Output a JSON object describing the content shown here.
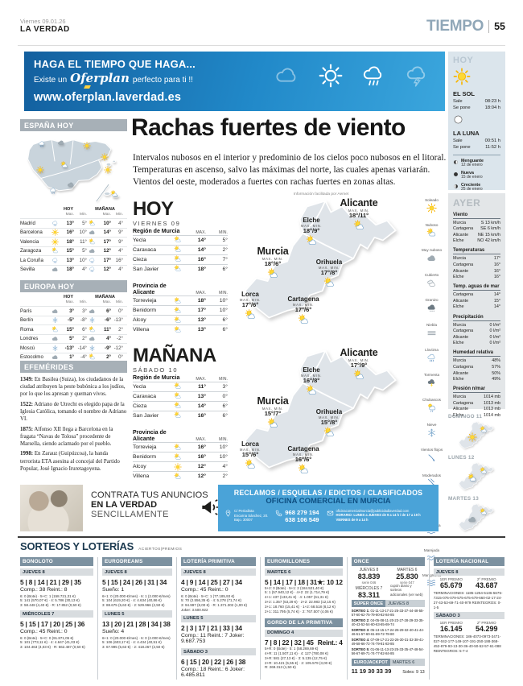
{
  "header": {
    "date": "Viernes 09.01.26",
    "brand": "LA VERDAD",
    "section": "TIEMPO",
    "page": "55"
  },
  "banner": {
    "line1": "HAGA EL TIEMPO QUE HAGA...",
    "pre": "Existe un",
    "brand": "Oferplan",
    "post": "perfecto para ti !!",
    "url": "www.oferplan.laverdad.es"
  },
  "labels": {
    "hoy": "HOY",
    "manana": "MAÑANA",
    "maxlc": "Max.",
    "minlc": "Min.",
    "max": "MAX.",
    "min": "MIN.",
    "maxmin": "MAX.   MIN.",
    "sale": "Sale",
    "pone": "Se pone"
  },
  "espana": {
    "title": "ESPAÑA HOY",
    "rows": [
      {
        "city": "Madrid",
        "i1": "rain",
        "hmax": "13°",
        "hmin": "5°",
        "i2": "sun-cloud",
        "mmax": "10°",
        "mmin": "4°"
      },
      {
        "city": "Barcelona",
        "i1": "sun",
        "hmax": "16°",
        "hmin": "10°",
        "i2": "cloud",
        "mmax": "14°",
        "mmin": "9°"
      },
      {
        "city": "Valencia",
        "i1": "sun",
        "hmax": "18°",
        "hmin": "11°",
        "i2": "sun-cloud",
        "mmax": "17°",
        "mmin": "9°"
      },
      {
        "city": "Zaragoza",
        "i1": "sun-cloud",
        "hmax": "15°",
        "hmin": "5°",
        "i2": "cloud",
        "mmax": "12°",
        "mmin": "4°"
      },
      {
        "city": "La Coruña",
        "i1": "rain",
        "hmax": "13°",
        "hmin": "10°",
        "i2": "rain",
        "mmax": "17°",
        "mmin": "16°"
      },
      {
        "city": "Sevilla",
        "i1": "cloud",
        "hmax": "18°",
        "hmin": "4°",
        "i2": "rain",
        "mmax": "12°",
        "mmin": "4°"
      }
    ]
  },
  "europa": {
    "title": "EUROPA HOY",
    "rows": [
      {
        "city": "París",
        "i1": "cloud",
        "hmax": "3°",
        "hmin": "3°",
        "i2": "cloud",
        "mmax": "6°",
        "mmin": "0°"
      },
      {
        "city": "Berlín",
        "i1": "snow",
        "hmax": "-5°",
        "hmin": "-8°",
        "i2": "snow",
        "mmax": "-6°",
        "mmin": "-13°"
      },
      {
        "city": "Roma",
        "i1": "sun-cloud",
        "hmax": "15°",
        "hmin": "6°",
        "i2": "sun-cloud",
        "mmax": "11°",
        "mmin": "2°"
      },
      {
        "city": "Londres",
        "i1": "cloud",
        "hmax": "5°",
        "hmin": "2°",
        "i2": "cloud",
        "mmax": "4°",
        "mmin": "-2°"
      },
      {
        "city": "Moscú",
        "i1": "snow",
        "hmax": "-13°",
        "hmin": "-14°",
        "i2": "snow",
        "mmax": "-9°",
        "mmin": "-12°"
      },
      {
        "city": "Estocolmo",
        "i1": "cloud",
        "hmax": "1°",
        "hmin": "-4°",
        "i2": "sun-cloud",
        "mmax": "2°",
        "mmin": "0°"
      }
    ]
  },
  "efemerides": {
    "title": "EFEMÉRIDES",
    "entries": [
      {
        "year": "1349:",
        "text": "En Basilea (Suiza), los ciudadanos de la ciudad atribuyen la peste bubónica a los judíos, por lo que los apresan y queman vivos."
      },
      {
        "year": "1522:",
        "text": "Adriano de Utrecht es elegido papa de la Iglesia Católica, tomando el nombre de Adriano VI."
      },
      {
        "year": "1875:",
        "text": "Alfonso XII llega a Barcelona en la fragata “Navas de Tolosa” procedente de Marsella, siendo aclamado por el pueblo."
      },
      {
        "year": "1998:",
        "text": "En Zarauz (Guipúzcoa), la banda terrorista ETA asesina al concejal del Partido Popular, José Ignacio Iruretagoyena."
      }
    ]
  },
  "article": {
    "headline": "Rachas fuertes de viento",
    "body": "Intervalos nubosos en el interior y predominio de los cielos poco nubosos en el litoral. Temperaturas en ascenso, salvo las máximas del norte, las cuales apenas variarán. Vientos del oeste, moderados a fuertes con rachas fuertes en zonas altas.",
    "credit": "Información facilitada por Aemet"
  },
  "hoy": {
    "title": "HOY",
    "subtitle": "VIERNES 09",
    "r1name": "Región de Murcia",
    "r2name": "Provincia de Alicante",
    "region1": [
      {
        "city": "Yecla",
        "icon": "sun-cloud",
        "max": "14°",
        "min": "5°"
      },
      {
        "city": "Caravaca",
        "icon": "sun-cloud",
        "max": "14°",
        "min": "2°"
      },
      {
        "city": "Cieza",
        "icon": "sun-cloud",
        "max": "16°",
        "min": "7°"
      },
      {
        "city": "San Javier",
        "icon": "sun-cloud",
        "max": "18°",
        "min": "6°"
      }
    ],
    "region2": [
      {
        "city": "Torrevieja",
        "icon": "sun-cloud",
        "max": "18°",
        "min": "10°"
      },
      {
        "city": "Benidorm",
        "icon": "sun-cloud",
        "max": "17°",
        "min": "10°"
      },
      {
        "city": "Alcoy",
        "icon": "sun-cloud",
        "max": "13°",
        "min": "6°"
      },
      {
        "city": "Villena",
        "icon": "sun-cloud",
        "max": "13°",
        "min": "6°"
      }
    ],
    "map": [
      {
        "name": "Alicante",
        "temp": "18°/11°"
      },
      {
        "name": "Elche",
        "temp": "18°/9°"
      },
      {
        "name": "Murcia",
        "temp": "18°/6°"
      },
      {
        "name": "Orihuela",
        "temp": "17°/8°"
      },
      {
        "name": "Lorca",
        "temp": "17°/6°"
      },
      {
        "name": "Cartagena",
        "temp": "17°/6°"
      }
    ]
  },
  "manana": {
    "title": "MAÑANA",
    "subtitle": "SÁBADO 10",
    "r1name": "Región de Murcia",
    "r2name": "Provincia de Alicante",
    "region1": [
      {
        "city": "Yecla",
        "icon": "sun-cloud",
        "max": "11°",
        "min": "3°"
      },
      {
        "city": "Caravaca",
        "icon": "sun-cloud",
        "max": "13°",
        "min": "0°"
      },
      {
        "city": "Cieza",
        "icon": "sun-cloud",
        "max": "14°",
        "min": "6°"
      },
      {
        "city": "San Javier",
        "icon": "sun-cloud",
        "max": "16°",
        "min": "6°"
      }
    ],
    "region2": [
      {
        "city": "Torrevieja",
        "icon": "sun-cloud",
        "max": "16°",
        "min": "10°"
      },
      {
        "city": "Benidorm",
        "icon": "sun-cloud",
        "max": "16°",
        "min": "10°"
      },
      {
        "city": "Alcoy",
        "icon": "sun",
        "max": "12°",
        "min": "4°"
      },
      {
        "city": "Villena",
        "icon": "sun-cloud",
        "max": "12°",
        "min": "2°"
      }
    ],
    "map": [
      {
        "name": "Alicante",
        "temp": "17°/9°"
      },
      {
        "name": "Elche",
        "temp": "16°/8°"
      },
      {
        "name": "Murcia",
        "temp": "15°/7°"
      },
      {
        "name": "Orihuela",
        "temp": "15°/8°"
      },
      {
        "name": "Lorca",
        "temp": "15°/6°"
      },
      {
        "name": "Cartagena",
        "temp": "16°/6°"
      }
    ]
  },
  "legend": [
    {
      "label": "Soleado",
      "icon": "sun"
    },
    {
      "label": "Nuboso",
      "icon": "sun-cloud"
    },
    {
      "label": "Muy nuboso",
      "icon": "cloud"
    },
    {
      "label": "Cubierto",
      "icon": "clouds"
    },
    {
      "label": "Granizo",
      "icon": "dark-cloud"
    },
    {
      "label": "Niebla",
      "icon": "fog"
    },
    {
      "label": "Llovizna",
      "icon": "rain"
    },
    {
      "label": "Tormenta",
      "icon": "storm"
    },
    {
      "label": "Chubascos",
      "icon": "sun-rain"
    },
    {
      "label": "Nieve",
      "icon": "snow"
    },
    {
      "label": "Vientos flojos",
      "icon": "wind1"
    },
    {
      "label": "Moderados",
      "icon": "wind2"
    },
    {
      "label": "Fuerte",
      "icon": "wind3"
    },
    {
      "label": "Marejadilla",
      "icon": "wave1"
    },
    {
      "label": "Marejada",
      "icon": "wave2"
    },
    {
      "label": "Mar gruesa",
      "icon": "wave3"
    }
  ],
  "spain_icons": [
    "rain",
    "cloud",
    "sun",
    "sun",
    "sun-cloud",
    "sun",
    "cloud",
    "rain",
    "sun",
    "sun-cloud"
  ],
  "sidebar": {
    "hoy_title": "HOY",
    "sol": {
      "name": "EL SOL",
      "sale": "08:23 h",
      "pone": "18:04 h"
    },
    "luna": {
      "name": "LA LUNA",
      "sale": "00:51 h",
      "pone": "11:52 h"
    },
    "phases": [
      {
        "icon": "moon-last",
        "name": "Menguante",
        "date": "12 de enero"
      },
      {
        "icon": "moon-new",
        "name": "Nueva",
        "date": "15 de enero"
      },
      {
        "icon": "moon-first",
        "name": "Creciente",
        "date": "25 de enero"
      },
      {
        "icon": "moon-full",
        "name": "Llena",
        "date": "2 de febrero"
      }
    ],
    "ayer_title": "AYER",
    "groups": [
      {
        "name": "Viento",
        "rows": [
          [
            "Murcia",
            "S 13 km/h"
          ],
          [
            "Cartagena",
            "SE 6 km/h"
          ],
          [
            "Alicante",
            "NE 15 km/h"
          ],
          [
            "Elche",
            "NO 42 km/h"
          ]
        ]
      },
      {
        "name": "Temperaturas",
        "rows": [
          [
            "Murcia",
            "17°"
          ],
          [
            "Cartagena",
            "16°"
          ],
          [
            "Alicante",
            "16°"
          ],
          [
            "Elche",
            "16°"
          ]
        ]
      },
      {
        "name": "Temp. aguas de mar",
        "rows": [
          [
            "Cartagena",
            "14°"
          ],
          [
            "Alicante",
            "15°"
          ],
          [
            "Elche",
            "14°"
          ]
        ]
      },
      {
        "name": "Precipitación",
        "rows": [
          [
            "Murcia",
            "0 l/m²"
          ],
          [
            "Cartagena",
            "0 l/m²"
          ],
          [
            "Alicante",
            "0 l/m²"
          ],
          [
            "Elche",
            "0 l/m²"
          ]
        ]
      },
      {
        "name": "Humedad relativa",
        "rows": [
          [
            "Murcia",
            "48%"
          ],
          [
            "Cartagena",
            "57%"
          ],
          [
            "Alicante",
            "50%"
          ],
          [
            "Elche",
            "49%"
          ]
        ]
      },
      {
        "name": "Presión n/mar",
        "rows": [
          [
            "Murcia",
            "1014 mb"
          ],
          [
            "Cartagena",
            "1013 mb"
          ],
          [
            "Alicante",
            "1013 mb"
          ],
          [
            "Elche",
            "1014 mb"
          ]
        ]
      }
    ],
    "days": [
      {
        "label": "DOMINGO 11",
        "i1": "sun",
        "i2": "sun-cloud"
      },
      {
        "label": "LUNES 12",
        "i1": "sun-cloud",
        "i2": "sun-cloud"
      },
      {
        "label": "MARTES 13",
        "i1": "cloud",
        "i2": "sun-cloud"
      }
    ]
  },
  "ad": {
    "l1": "CONTRATA TUS ANUNCIOS",
    "l2": "EN LA VERDAD",
    "l3": "SENCILLAMENTE",
    "r1": "RECLAMOS / ESQUELAS / EDICTOS / CLASIFICADOS",
    "r2": "OFICINA COMERCIAL EN MURCIA",
    "addr1": "C/ Periodista",
    "addr2": "Encarna Sánchez, 20.",
    "addr3": "Bajo. 30007",
    "phone1": "968 279 194",
    "phone2": "638 106 549",
    "mail": "oficinacomercialmurcia@publicidadlaverdad.com",
    "sched1": "HORARIO: LUNES a JUEVES de 9 a 14 h / de 17 a 19 h",
    "sched2": "VIERNES de 9 a 14 h"
  },
  "sorteos": {
    "title": "SORTEOS Y LOTERÍAS",
    "note": "ACIERTOS|PREMIOS"
  },
  "bonoloto": {
    "name": "BONOLOTO",
    "draws": [
      {
        "date": "JUEVES 8",
        "nums": "5 | 8 | 14 | 21 | 29 | 35",
        "extra": "Comp.: 38 Reint.: 8",
        "fine": "6: 0 (Bote) · 5+C: 1 (158.721,31 €)\n5: 141 (570,07 €) · 4: 5.786 (30,13 €)\n3: 58.448 (4,40 €) · R: 17.852 (0,50 €)"
      },
      {
        "date": "MIÉRCOLES 7",
        "nums": "5 | 15 | 17 | 20 | 25 | 36",
        "extra": "Comp.: 45 Reint.: 0",
        "fine": "6: 0 (Bote) · 5+C: 0 (91.871,05 €)\n5: 101 (773,11 €) · 4: 4.647 (41,03 €)\n3: 104.463 (4,03 €) · R: 562.487 (0,50 €)"
      }
    ]
  },
  "eurodreams": {
    "name": "EURODREAMS",
    "draws": [
      {
        "date": "JUEVES 8",
        "nums": "5 | 15 | 24 | 26 | 31 | 34",
        "extra": "Sueño: 1",
        "fine": "6+1: 0 (20.000 €/mes) · 6: 1 (2.000 €/mes)\n5: 104 (619,20 €) · 4: 4.634 (40,86 €)\n3: 88.675 (5,63 €) · 2: 529.966 (2,50 €)"
      },
      {
        "date": "LUNES 5",
        "nums": "13 | 20 | 21 | 28 | 34 | 38",
        "extra": "Sueño: 4",
        "fine": "6+1: 0 (20.000 €/mes) · 6: 0 (2.000 €/mes)\n5: 106 (603,17 €) · 4: 4.434 (40,51 €)\n3: 67.995 (5,63 €) · 2: 418.267 (2,50 €)"
      }
    ]
  },
  "primitiva": {
    "name": "LOTERÍA PRIMITIVA",
    "draws": [
      {
        "date": "JUEVES 8",
        "nums": "4 | 9 | 14 | 25 | 27 | 34",
        "extra": "Comp.: 45 Reint.: 0",
        "fine": "6: 0 (Bote) · 5+C: 1 (77.185,93 €)\n5: 70 (2.556,35 €) · 4: 5.278 (71,74 €)\n3: 94.997 (8,00 €) · R: 1.371.302 (1,00 €)\nJoker: 3.500.922"
      },
      {
        "date": "LUNES 5",
        "nums": "2 | 3 | 17 | 21 | 33 | 34",
        "extra": "Comp.: 11 Reint.: 7 Joker: 9.687.753",
        "fine": ""
      },
      {
        "date": "SÁBADO 3",
        "nums": "6 | 15 | 20 | 22 | 26 | 38",
        "extra": "Comp.: 18 Reint.: 6 Joker: 6.485.811",
        "fine": ""
      }
    ]
  },
  "euromillones": {
    "name": "EUROMILLONES",
    "draws": [
      {
        "date": "MARTES 6",
        "nums": "5 | 14 | 17 | 18 | 31",
        "stars": "★: 10 12",
        "fine": "5+2: 0 (Bote) · 5+1: 2 (184.521,40 €)\n5: 1 (57.940,12 €) · 4+2: 22 (1.714,79 €)\n4+1: 437 (133,41 €) · 4: 1.057 (61,31 €)\n3+2: 1.357 (53,29 €) · 2+2: 22.983 (12,15 €)\n3+1: 18.760 (15,41 €) · 1+2: 68.518 (8,12 €)\n2+1: 311.795 (5,74 €) · 2: 767.507 (4,06 €)"
      }
    ]
  },
  "gordo": {
    "name": "GORDO DE LA PRIMITIVA",
    "draws": [
      {
        "date": "DOMINGO 4",
        "nums": "7 | 8 | 22 | 32 | 45",
        "extra": "Reint.: 4",
        "fine": "5+R: 0 (Bote) · 5: 1 (58.269,69 €)\n4+R: 11 (1.507,11 €) · 4: 127 (780,08 €)\n3+R: 581 (27,13 €) · 3: 5.135 (12,75 €)\n2+R: 10.421 (5,55 €) · 2: 105.579 (3,00 €)\nR: 269.313 (1,50 €)"
      }
    ]
  },
  "once": {
    "name": "ONCE",
    "cells": [
      {
        "date": "JUEVES 8",
        "num": "83.839",
        "serie": "serie 046"
      },
      {
        "date": "MARTES 6",
        "num": "25.830",
        "serie": "serie 047"
      },
      {
        "date": "MIÉRCOLES 7",
        "num": "83.311",
        "serie": "serie 013"
      }
    ],
    "note": "cupón diario y sorteos\nadicionales (ver web)",
    "super_name": "SÚPER ONCE",
    "super_date": "JUEVES 8",
    "sorteos": [
      {
        "label": "SORTEO 1:",
        "nums": "01-11-13-17-21-25-33-37-44-48-55-57-60-62-75-79-80-82-84-85"
      },
      {
        "label": "SORTEO 2:",
        "nums": "04-05-08-11-20-23-27-28-29-33-35-40-43-52-54-60-63-65-69-74"
      },
      {
        "label": "SORTEO 3:",
        "nums": "05-13-15-17-24-26-29-32-40-41-44-46-51-57-60-61-69-72-78-80"
      },
      {
        "label": "SORTEO 4:",
        "nums": "07-09-17-21-23-26-30-31-32-38-41-49-58-66-72-74-79-81-83-85"
      },
      {
        "label": "SORTEO 5:",
        "nums": "01-06-11-13-23-25-33-35-47-48-54-56-67-69-71-74-77-82-84-85"
      }
    ],
    "euro_name": "EUROJACKPOT",
    "euro_date": "MARTES 6",
    "euro_nums": "11  19  30  33  39",
    "euro_extra": "Soles: 9  13"
  },
  "nacional": {
    "name": "LOTERÍA NACIONAL",
    "p1l": "1ER PREMIO",
    "p2l": "2º PREMIO",
    "draws": [
      {
        "date": "JUEVES 8",
        "p1": "65.679",
        "p2": "43.687",
        "terms": "TERMINACIONES: 1185-1254-5136-5675-7315-076-079-575-675-679-660-02-17-24-27-43-53-69-71-40-979  REINTEGROS: 0-1-5"
      },
      {
        "date": "SÁBADO 3",
        "p1": "16.145",
        "p2": "54.299",
        "terms": "TERMINACIONES: 186-4073-0973-3471-027-042-177-149-107-191-250-188-368-452-879-93-13-30-36-40-50-52-57-61-088  REINTEGROS: 5-7-4"
      }
    ]
  }
}
